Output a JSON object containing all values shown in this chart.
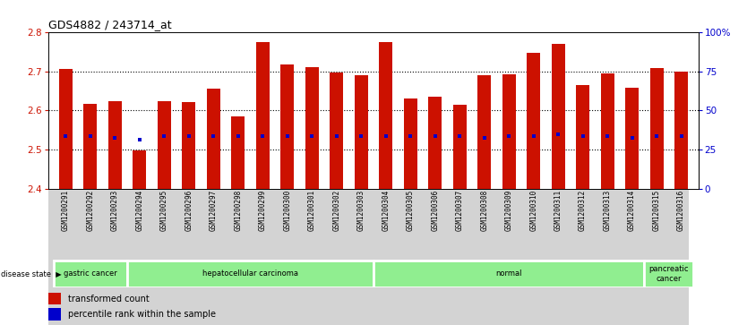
{
  "title": "GDS4882 / 243714_at",
  "samples": [
    "GSM1200291",
    "GSM1200292",
    "GSM1200293",
    "GSM1200294",
    "GSM1200295",
    "GSM1200296",
    "GSM1200297",
    "GSM1200298",
    "GSM1200299",
    "GSM1200300",
    "GSM1200301",
    "GSM1200302",
    "GSM1200303",
    "GSM1200304",
    "GSM1200305",
    "GSM1200306",
    "GSM1200307",
    "GSM1200308",
    "GSM1200309",
    "GSM1200310",
    "GSM1200311",
    "GSM1200312",
    "GSM1200313",
    "GSM1200314",
    "GSM1200315",
    "GSM1200316"
  ],
  "bar_heights": [
    2.707,
    2.618,
    2.623,
    2.498,
    2.623,
    2.622,
    2.655,
    2.585,
    2.775,
    2.718,
    2.712,
    2.697,
    2.69,
    2.776,
    2.63,
    2.635,
    2.615,
    2.69,
    2.692,
    2.748,
    2.77,
    2.665,
    2.695,
    2.658,
    2.708,
    2.7
  ],
  "percentile_vals": [
    2.535,
    2.535,
    2.53,
    2.525,
    2.535,
    2.535,
    2.535,
    2.535,
    2.535,
    2.535,
    2.535,
    2.535,
    2.535,
    2.535,
    2.535,
    2.535,
    2.535,
    2.53,
    2.535,
    2.535,
    2.54,
    2.535,
    2.535,
    2.53,
    2.535,
    2.535
  ],
  "ymin": 2.4,
  "ymax": 2.8,
  "bar_color": "#CC1100",
  "dot_color": "#0000CC",
  "bg_color": "#FFFFFF",
  "tick_label_color": "#CC1100",
  "right_tick_color": "#0000CC",
  "xtick_bg": "#D3D3D3",
  "grid_dotted_at": [
    2.5,
    2.6,
    2.7
  ],
  "disease_groups": [
    {
      "label": "gastric cancer",
      "start": 0,
      "end": 3
    },
    {
      "label": "hepatocellular carcinoma",
      "start": 3,
      "end": 13
    },
    {
      "label": "normal",
      "start": 13,
      "end": 24
    },
    {
      "label": "pancreatic\ncancer",
      "start": 24,
      "end": 26
    }
  ],
  "group_color": "#90EE90",
  "group_border_color": "#FFFFFF",
  "legend_items": [
    {
      "label": "transformed count",
      "color": "#CC1100"
    },
    {
      "label": "percentile rank within the sample",
      "color": "#0000CC"
    }
  ]
}
